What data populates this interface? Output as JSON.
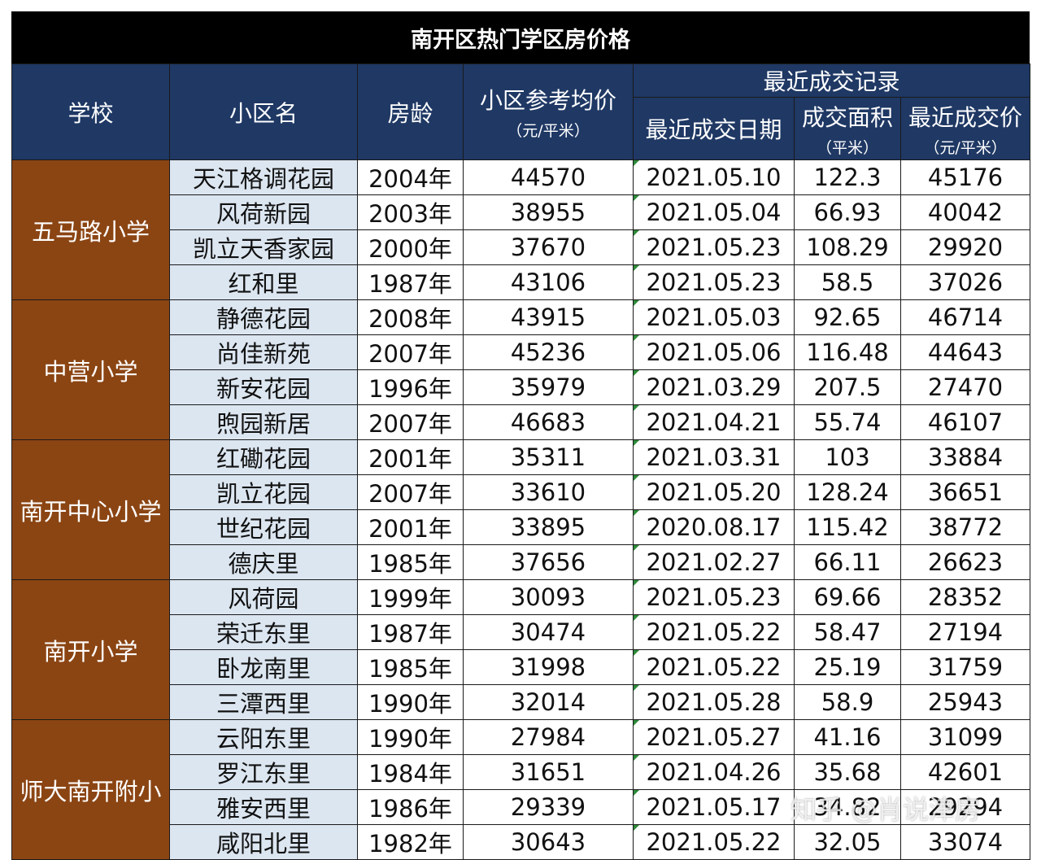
{
  "title": "南开区热门学区房价格",
  "header": {
    "school": "学校",
    "community": "小区名",
    "age": "房龄",
    "ref_price": "小区参考均价",
    "ref_price_unit": "（元/平米）",
    "recent_group": "最近成交记录",
    "deal_date": "最近成交日期",
    "deal_area": "成交面积",
    "deal_area_unit": "（平米）",
    "deal_price": "最近成交价",
    "deal_price_unit": "（元/平米）"
  },
  "groups": [
    {
      "school": "五马路小学",
      "rows": [
        {
          "name": "天江格调花园",
          "age": "2004年",
          "ref": "44570",
          "date": "2021.05.10",
          "area": "122.3",
          "price": "45176"
        },
        {
          "name": "风荷新园",
          "age": "2003年",
          "ref": "38955",
          "date": "2021.05.04",
          "area": "66.93",
          "price": "40042"
        },
        {
          "name": "凯立天香家园",
          "age": "2000年",
          "ref": "37670",
          "date": "2021.05.23",
          "area": "108.29",
          "price": "29920"
        },
        {
          "name": "红和里",
          "age": "1987年",
          "ref": "43106",
          "date": "2021.05.23",
          "area": "58.5",
          "price": "37026"
        }
      ]
    },
    {
      "school": "中营小学",
      "rows": [
        {
          "name": "静德花园",
          "age": "2008年",
          "ref": "43915",
          "date": "2021.05.03",
          "area": "92.65",
          "price": "46714"
        },
        {
          "name": "尚佳新苑",
          "age": "2007年",
          "ref": "45236",
          "date": "2021.05.06",
          "area": "116.48",
          "price": "44643"
        },
        {
          "name": "新安花园",
          "age": "1996年",
          "ref": "35979",
          "date": "2021.03.29",
          "area": "207.5",
          "price": "27470"
        },
        {
          "name": "煦园新居",
          "age": "2007年",
          "ref": "46683",
          "date": "2021.04.21",
          "area": "55.74",
          "price": "46107"
        }
      ]
    },
    {
      "school": "南开中心小学",
      "rows": [
        {
          "name": "红磡花园",
          "age": "2001年",
          "ref": "35311",
          "date": "2021.03.31",
          "area": "103",
          "price": "33884"
        },
        {
          "name": "凯立花园",
          "age": "2007年",
          "ref": "33610",
          "date": "2021.05.20",
          "area": "128.24",
          "price": "36651"
        },
        {
          "name": "世纪花园",
          "age": "2001年",
          "ref": "33895",
          "date": "2020.08.17",
          "area": "115.42",
          "price": "38772"
        },
        {
          "name": "德庆里",
          "age": "1985年",
          "ref": "37656",
          "date": "2021.02.27",
          "area": "66.11",
          "price": "26623"
        }
      ]
    },
    {
      "school": "南开小学",
      "rows": [
        {
          "name": "风荷园",
          "age": "1999年",
          "ref": "30093",
          "date": "2021.05.23",
          "area": "69.66",
          "price": "28352"
        },
        {
          "name": "荣迁东里",
          "age": "1987年",
          "ref": "30474",
          "date": "2021.05.22",
          "area": "58.47",
          "price": "27194"
        },
        {
          "name": "卧龙南里",
          "age": "1985年",
          "ref": "31998",
          "date": "2021.05.22",
          "area": "25.19",
          "price": "31759"
        },
        {
          "name": "三潭西里",
          "age": "1990年",
          "ref": "32014",
          "date": "2021.05.28",
          "area": "58.9",
          "price": "25943"
        }
      ]
    },
    {
      "school": "师大南开附小",
      "rows": [
        {
          "name": "云阳东里",
          "age": "1990年",
          "ref": "27984",
          "date": "2021.05.27",
          "area": "41.16",
          "price": "31099"
        },
        {
          "name": "罗江东里",
          "age": "1984年",
          "ref": "31651",
          "date": "2021.04.26",
          "area": "35.68",
          "price": "42601"
        },
        {
          "name": "雅安西里",
          "age": "1986年",
          "ref": "29339",
          "date": "2021.05.17",
          "area": "34.82",
          "price": "29294"
        },
        {
          "name": "咸阳北里",
          "age": "1982年",
          "ref": "30643",
          "date": "2021.05.22",
          "area": "32.05",
          "price": "33074"
        }
      ]
    }
  ],
  "watermark": "知乎 @肖说津房",
  "colors": {
    "title_bg": "#000000",
    "header_bg": "#1f3864",
    "school_bg": "#8b4513",
    "name_bg": "#dce6f1"
  }
}
